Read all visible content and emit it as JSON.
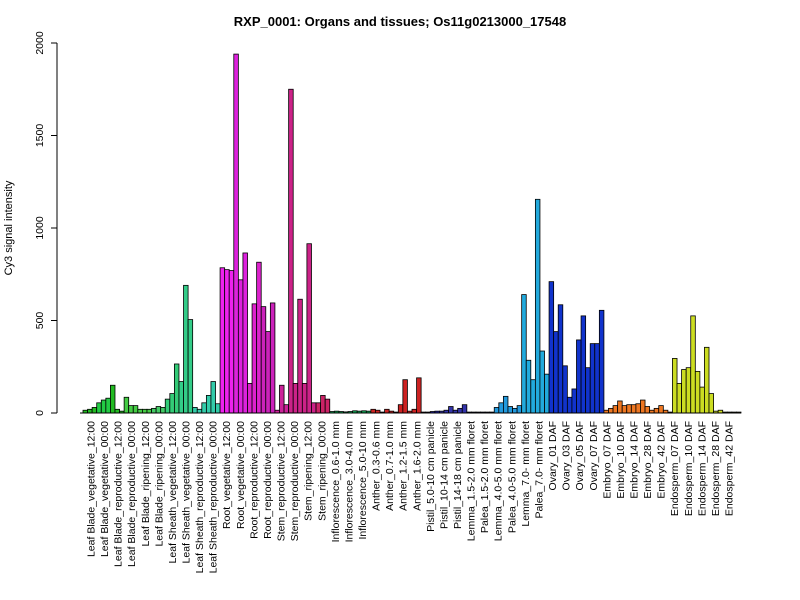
{
  "chart_data": {
    "type": "bar",
    "title": "RXP_0001: Organs and tissues; Os11g0213000_17548",
    "xlabel": "",
    "ylabel": "Cy3 signal intensity",
    "ylim": [
      0,
      2000
    ],
    "yticks": [
      0,
      500,
      1000,
      1500,
      2000
    ],
    "grid": false,
    "tick_labels": [
      "Leaf Blade_vegetative_12:00",
      "Leaf Blade_vegetative_00:00",
      "Leaf Blade_reproductive_12:00",
      "Leaf Blade_reproductive_00:00",
      "Leaf Blade_ripening_12:00",
      "Leaf Blade_ripening_00:00",
      "Leaf Sheath_vegetative_12:00",
      "Leaf Sheath_vegetative_00:00",
      "Leaf Sheath_reproductive_12:00",
      "Leaf Sheath_reproductive_00:00",
      "Root_vegetative_12:00",
      "Root_vegetative_00:00",
      "Root_reproductive_12:00",
      "Root_reproductive_00:00",
      "Stem_reproductive_12:00",
      "Stem_reproductive_00:00",
      "Stem_ripening_12:00",
      "Stem_ripening_00:00",
      "Inflorescence_0.6-1.0 mm",
      "Inflorescence_3.0-4.0 mm",
      "Inflorescence_5.0-10 mm",
      "Anther_0.3-0.6 mm",
      "Anther_0.7-1.0 mm",
      "Anther_1.2-1.5 mm",
      "Anther_1.6-2.0 mm",
      "Pistil_5.0-10 cm panicle",
      "Pistil_10-14 cm panicle",
      "Pistil_14-18 cm panicle",
      "Lemma_1.5-2.0 mm floret",
      "Palea_1.5-2.0 mm floret",
      "Lemma_4.0-5.0 mm floret",
      "Palea_4.0-5.0 mm floret",
      "Lemma_7.0- mm floret",
      "Palea_7.0- mm floret",
      "Ovary_01 DAF",
      "Ovary_03 DAF",
      "Ovary_05 DAF",
      "Ovary_07 DAF",
      "Embryo_07 DAF",
      "Embryo_10 DAF",
      "Embryo_14 DAF",
      "Embryo_28 DAF",
      "Embryo_42 DAF",
      "Endosperm_07 DAF",
      "Endosperm_10 DAF",
      "Endosperm_14 DAF",
      "Endosperm_28 DAF",
      "Endosperm_42 DAF"
    ],
    "series": [
      {
        "values": [
          15,
          20,
          30
        ],
        "color": "#22bb22"
      },
      {
        "values": [
          55,
          70,
          80
        ],
        "color": "#22cc44"
      },
      {
        "values": [
          150,
          20,
          10
        ],
        "color": "#22bb22"
      },
      {
        "values": [
          85,
          40,
          40
        ],
        "color": "#44cc44"
      },
      {
        "values": [
          20,
          20,
          20
        ],
        "color": "#44cc44"
      },
      {
        "values": [
          25,
          35,
          30
        ],
        "color": "#44cc66"
      },
      {
        "values": [
          75,
          105,
          265
        ],
        "color": "#33cc77"
      },
      {
        "values": [
          170,
          690,
          505
        ],
        "color": "#33cc88"
      },
      {
        "values": [
          30,
          20,
          55
        ],
        "color": "#33ccaa"
      },
      {
        "values": [
          95,
          170,
          50
        ],
        "color": "#33ccaa"
      },
      {
        "values": [
          785,
          775,
          770
        ],
        "color": "#ee22ee"
      },
      {
        "values": [
          1940,
          720,
          865
        ],
        "color": "#dd22dd"
      },
      {
        "values": [
          160,
          590,
          815
        ],
        "color": "#dd22cc"
      },
      {
        "values": [
          575,
          440,
          595
        ],
        "color": "#cc22bb"
      },
      {
        "values": [
          15,
          150,
          45
        ],
        "color": "#cc2299"
      },
      {
        "values": [
          1750,
          160,
          615
        ],
        "color": "#cc2288"
      },
      {
        "values": [
          160,
          915,
          55
        ],
        "color": "#cc2288"
      },
      {
        "values": [
          55,
          95,
          75
        ],
        "color": "#cc2266"
      },
      {
        "values": [
          8,
          10,
          8
        ],
        "color": "#11aa55"
      },
      {
        "values": [
          6,
          8,
          12
        ],
        "color": "#11aa55"
      },
      {
        "values": [
          10,
          12,
          10
        ],
        "color": "#11aa55"
      },
      {
        "values": [
          20,
          15,
          5
        ],
        "color": "#cc2222"
      },
      {
        "values": [
          20,
          10,
          5
        ],
        "color": "#cc2222"
      },
      {
        "values": [
          45,
          180,
          10
        ],
        "color": "#cc2222"
      },
      {
        "values": [
          20,
          190,
          5
        ],
        "color": "#cc2222"
      },
      {
        "values": [
          5,
          8,
          10
        ],
        "color": "#2222aa"
      },
      {
        "values": [
          10,
          15,
          35
        ],
        "color": "#3333aa"
      },
      {
        "values": [
          15,
          25,
          45
        ],
        "color": "#3333aa"
      },
      {
        "values": [
          5,
          5,
          5
        ],
        "color": "#3333bb"
      },
      {
        "values": [
          5,
          5,
          5
        ],
        "color": "#3333bb"
      },
      {
        "values": [
          30,
          55,
          90
        ],
        "color": "#2299dd"
      },
      {
        "values": [
          35,
          25,
          40
        ],
        "color": "#2299dd"
      },
      {
        "values": [
          640,
          285,
          180
        ],
        "color": "#22aadd"
      },
      {
        "values": [
          1155,
          335,
          210
        ],
        "color": "#22aadd"
      },
      {
        "values": [
          710,
          440,
          585
        ],
        "color": "#1133cc"
      },
      {
        "values": [
          255,
          85,
          130
        ],
        "color": "#1133cc"
      },
      {
        "values": [
          395,
          525,
          245
        ],
        "color": "#1133cc"
      },
      {
        "values": [
          375,
          375,
          555
        ],
        "color": "#1133cc"
      },
      {
        "values": [
          15,
          25,
          40
        ],
        "color": "#ee7722"
      },
      {
        "values": [
          65,
          40,
          45
        ],
        "color": "#ee7722"
      },
      {
        "values": [
          45,
          50,
          70
        ],
        "color": "#ee7722"
      },
      {
        "values": [
          35,
          15,
          25
        ],
        "color": "#ee7722"
      },
      {
        "values": [
          40,
          15,
          5
        ],
        "color": "#ee7722"
      },
      {
        "values": [
          295,
          160,
          235
        ],
        "color": "#ccdd22"
      },
      {
        "values": [
          245,
          525,
          225
        ],
        "color": "#ccdd22"
      },
      {
        "values": [
          140,
          355,
          105
        ],
        "color": "#ccdd22"
      },
      {
        "values": [
          10,
          15,
          5
        ],
        "color": "#ccdd22"
      },
      {
        "values": [
          5,
          5,
          5
        ],
        "color": "#ccdd22"
      }
    ]
  }
}
